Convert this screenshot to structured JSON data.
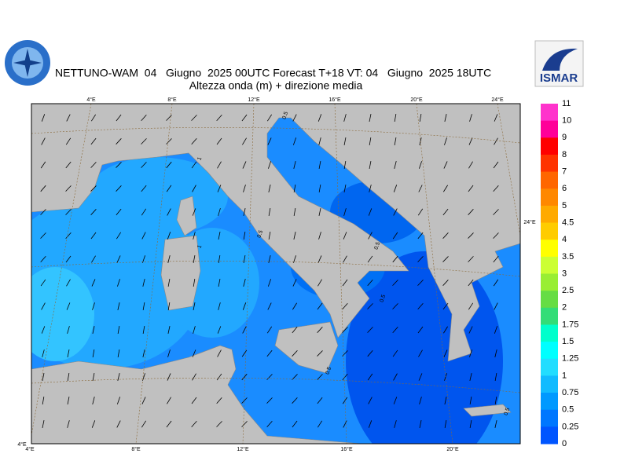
{
  "header": {
    "title": "NETTUNO-WAM  04   Giugno  2025 00UTC Forecast T+18 VT: 04   Giugno  2025 18UTC",
    "subtitle": "Altezza onda (m) + direzione media",
    "logo_right": "ISMAR"
  },
  "map": {
    "top_lon_labels": [
      "4°E",
      "8°E",
      "12°E",
      "16°E",
      "20°E",
      "24°E"
    ],
    "bottom_lon_labels": [
      "4°E",
      "8°E",
      "12°E",
      "16°E",
      "20°E"
    ],
    "corner_label": "4°E",
    "right_label": "24°E",
    "contour_labels": [
      "0.5",
      "1",
      "1",
      "0.5",
      "0.5",
      "0.5",
      "0.5",
      "0.5"
    ]
  },
  "colorbar": {
    "labels": [
      "11",
      "10",
      "9",
      "8",
      "7",
      "6",
      "5",
      "4.5",
      "4",
      "3.5",
      "3",
      "2.5",
      "2",
      "1.75",
      "1.5",
      "1.25",
      "1",
      "0.75",
      "0.5",
      "0.25",
      "0"
    ],
    "colors": [
      "#ff33cc",
      "#ff0099",
      "#ff0000",
      "#ff3300",
      "#ff6600",
      "#ff8800",
      "#ffaa00",
      "#ffcc00",
      "#ffff00",
      "#ccff33",
      "#99ee33",
      "#66dd44",
      "#33dd77",
      "#00ffcc",
      "#00ffff",
      "#22ddff",
      "#11bbff",
      "#0099ff",
      "#0077ff",
      "#0055ff"
    ]
  }
}
